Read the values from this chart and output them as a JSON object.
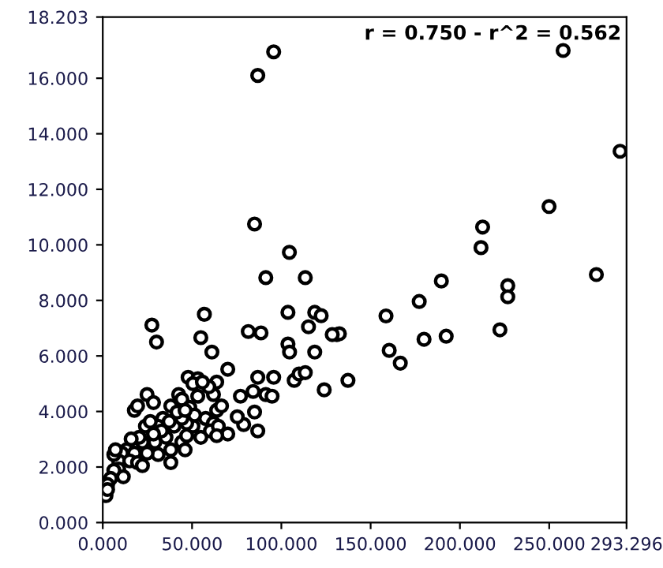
{
  "chart_data": {
    "type": "scatter",
    "marker": "circle",
    "grid": false,
    "annotations": [
      "r = 0.750 - r^2 = 0.562"
    ],
    "xlim": [
      0,
      293.296
    ],
    "ylim": [
      0,
      18.203
    ],
    "xticks": [
      {
        "value": 0,
        "label": "0.000"
      },
      {
        "value": 50,
        "label": "50.000"
      },
      {
        "value": 100,
        "label": "100.000"
      },
      {
        "value": 150,
        "label": "150.000"
      },
      {
        "value": 200,
        "label": "200.000"
      },
      {
        "value": 250,
        "label": "250.000"
      },
      {
        "value": 293.296,
        "label": "293.296"
      }
    ],
    "yticks": [
      {
        "value": 0,
        "label": "0.000"
      },
      {
        "value": 2,
        "label": "2.000"
      },
      {
        "value": 4,
        "label": "4.000"
      },
      {
        "value": 6,
        "label": "6.000"
      },
      {
        "value": 8,
        "label": "8.000"
      },
      {
        "value": 10,
        "label": "10.000"
      },
      {
        "value": 12,
        "label": "12.000"
      },
      {
        "value": 14,
        "label": "14.000"
      },
      {
        "value": 16,
        "label": "16.000"
      },
      {
        "value": 18.203,
        "label": "18.203"
      }
    ],
    "series": [
      {
        "color": "#000000",
        "x": [
          95.7,
          86.8,
          85,
          104.5,
          91.3,
          113.4,
          257.8,
          289.7,
          249.9,
          212.7,
          211.8,
          276.4,
          189.6,
          226.8,
          226.8,
          177.2,
          158.6,
          131.1,
          132.5,
          160.4,
          166.6,
          179.9,
          192.3,
          222.4,
          137.3,
          124,
          27.5,
          30.1,
          56.9,
          54.9,
          61.1,
          81.5,
          88.6,
          103.7,
          103.7,
          104.6,
          115.2,
          118.7,
          122.3,
          118.7,
          128.5,
          70,
          47.8,
          53.2,
          63.8,
          86.8,
          95.7,
          91.3,
          94.8,
          107.2,
          109.9,
          113.4,
          84.2,
          77.1,
          85,
          78.9,
          86.8,
          75.3,
          70,
          24.8,
          28.4,
          17.7,
          19.5,
          42.5,
          44.3,
          48.7,
          38.1,
          33.7,
          31,
          39.9,
          35.4,
          29.2,
          38.1,
          44.3,
          47,
          54.9,
          50.5,
          57.6,
          62,
          63.8,
          66.5,
          62,
          59.4,
          60.3,
          64.7,
          46.1,
          38.1,
          31,
          24.8,
          22.2,
          23.9,
          26.6,
          20.4,
          15.9,
          13.3,
          17.7,
          10.6,
          8.9,
          15.1,
          19.5,
          8.9,
          11.5,
          6.2,
          6.2,
          4.4,
          2.7,
          1.8,
          2.7,
          7.1,
          47,
          51.4,
          44.3,
          37.2,
          41.6,
          46.1,
          53.2,
          50.5,
          55.8,
          22.2,
          32.8,
          28.4,
          63.8
        ],
        "values": [
          16.95,
          16.1,
          10.75,
          9.73,
          8.82,
          8.82,
          17.0,
          13.37,
          11.38,
          10.64,
          9.9,
          8.93,
          8.7,
          8.53,
          8.13,
          7.96,
          7.44,
          6.77,
          6.8,
          6.2,
          5.74,
          6.6,
          6.71,
          6.94,
          5.12,
          4.78,
          7.11,
          6.5,
          7.5,
          6.66,
          6.14,
          6.88,
          6.83,
          7.57,
          6.43,
          6.14,
          7.05,
          7.57,
          7.45,
          6.14,
          6.77,
          5.52,
          5.23,
          5.18,
          5.06,
          5.23,
          5.23,
          4.61,
          4.55,
          5.12,
          5.35,
          5.4,
          4.72,
          4.55,
          3.98,
          3.53,
          3.3,
          3.81,
          3.19,
          4.61,
          4.32,
          4.04,
          4.2,
          4.61,
          4.44,
          4.15,
          4.2,
          3.75,
          3.47,
          3.47,
          3.07,
          2.9,
          2.62,
          2.9,
          3.13,
          3.07,
          3.47,
          3.75,
          3.58,
          4.04,
          4.2,
          4.61,
          4.89,
          3.3,
          3.47,
          2.62,
          2.16,
          2.45,
          2.5,
          2.9,
          3.47,
          3.64,
          3.07,
          3.01,
          2.62,
          2.5,
          2.5,
          2.22,
          2.22,
          2.16,
          1.93,
          1.65,
          1.88,
          2.45,
          1.59,
          1.37,
          0.97,
          1.19,
          2.62,
          3.58,
          3.87,
          3.75,
          3.64,
          3.98,
          4.04,
          4.55,
          5.0,
          5.06,
          2.05,
          3.3,
          3.19,
          3.13
        ]
      }
    ]
  }
}
